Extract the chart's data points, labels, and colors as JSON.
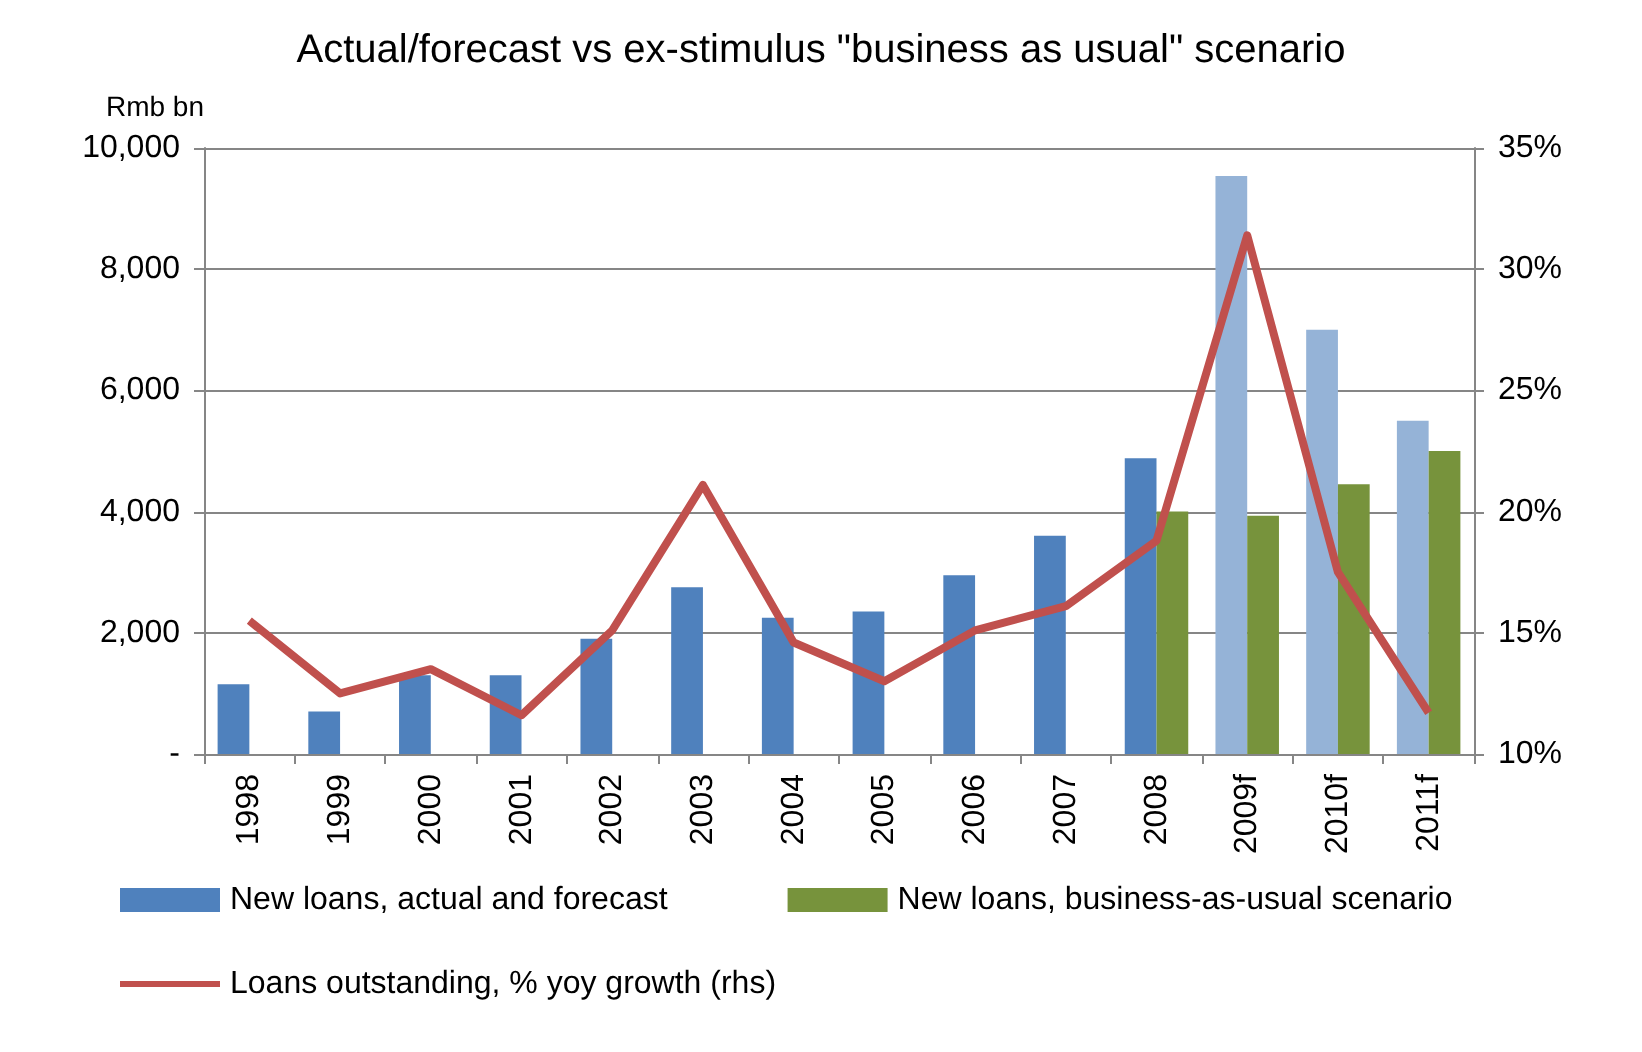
{
  "chart_data": {
    "type": "bar",
    "title": "Actual/forecast vs ex-stimulus \"business as usual\" scenario",
    "ylabel": "Rmb bn",
    "categories": [
      "1998",
      "1999",
      "2000",
      "2001",
      "2002",
      "2003",
      "2004",
      "2005",
      "2006",
      "2007",
      "2008",
      "2009f",
      "2010f",
      "2011f"
    ],
    "series": [
      {
        "name": "New loans, actual and forecast",
        "color": "#4f81bd",
        "colors": [
          "#4f81bd",
          "#4f81bd",
          "#4f81bd",
          "#4f81bd",
          "#4f81bd",
          "#4f81bd",
          "#4f81bd",
          "#4f81bd",
          "#4f81bd",
          "#4f81bd",
          "#4f81bd",
          "#95b3d7",
          "#95b3d7",
          "#95b3d7"
        ],
        "values": [
          1150,
          700,
          1300,
          1300,
          1900,
          2750,
          2250,
          2350,
          2950,
          3600,
          4880,
          9540,
          7000,
          5500
        ]
      },
      {
        "name": "New loans, business-as-usual scenario",
        "color": "#77933c",
        "values": [
          null,
          null,
          null,
          null,
          null,
          null,
          null,
          null,
          null,
          null,
          4000,
          3930,
          4450,
          5000
        ]
      },
      {
        "name": "Loans outstanding, % yoy growth (rhs)",
        "type": "line",
        "axis": "y2",
        "color": "#c0504d",
        "values": [
          15.5,
          12.5,
          13.5,
          11.6,
          15.1,
          21.1,
          14.6,
          13.0,
          15.1,
          16.1,
          18.8,
          31.4,
          17.5,
          11.7
        ]
      }
    ],
    "ylim": [
      0,
      10000
    ],
    "yticks": [
      {
        "value": 0,
        "label": "-"
      },
      {
        "value": 2000,
        "label": "2,000"
      },
      {
        "value": 4000,
        "label": "4,000"
      },
      {
        "value": 6000,
        "label": "6,000"
      },
      {
        "value": 8000,
        "label": "8,000"
      },
      {
        "value": 10000,
        "label": "10,000"
      }
    ],
    "y2lim": [
      10,
      35
    ],
    "y2ticks": [
      {
        "value": 10,
        "label": "10%"
      },
      {
        "value": 15,
        "label": "15%"
      },
      {
        "value": 20,
        "label": "20%"
      },
      {
        "value": 25,
        "label": "25%"
      },
      {
        "value": 30,
        "label": "30%"
      },
      {
        "value": 35,
        "label": "35%"
      }
    ],
    "grid": "y",
    "legend": "bottom",
    "marker": "none"
  }
}
